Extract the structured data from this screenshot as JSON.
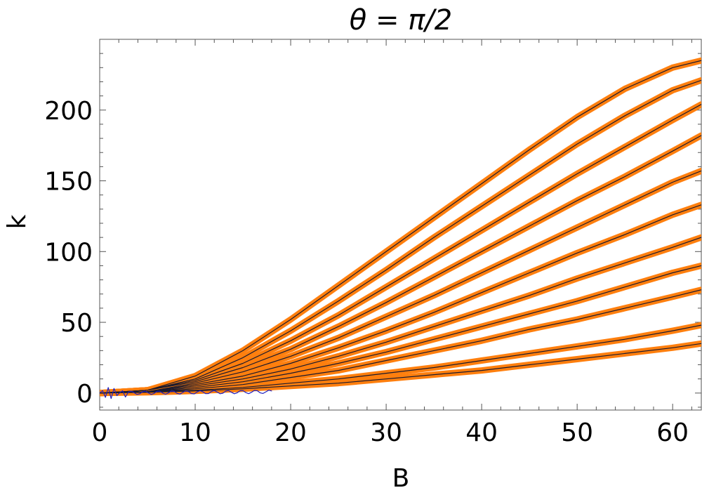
{
  "chart_data": {
    "type": "line",
    "title": "θ = π/2",
    "xlabel": "B",
    "ylabel": "k",
    "xlim": [
      0,
      63
    ],
    "ylim": [
      -12,
      250
    ],
    "xticks": [
      {
        "value": 0,
        "label": "0"
      },
      {
        "value": 10,
        "label": "10"
      },
      {
        "value": 20,
        "label": "20"
      },
      {
        "value": 30,
        "label": "30"
      },
      {
        "value": 40,
        "label": "40"
      },
      {
        "value": 50,
        "label": "50"
      },
      {
        "value": 60,
        "label": "60"
      }
    ],
    "yticks": [
      {
        "value": 0,
        "label": "0"
      },
      {
        "value": 50,
        "label": "50"
      },
      {
        "value": 100,
        "label": "100"
      },
      {
        "value": 150,
        "label": "150"
      },
      {
        "value": 200,
        "label": "200"
      }
    ],
    "grid": false,
    "colors": {
      "fit": "#ff7f0e",
      "numeric": "#1a1a2e",
      "noise": "#1f1fbf"
    },
    "series": [
      {
        "x": [
          0,
          5,
          10,
          15,
          20,
          25,
          30,
          35,
          40,
          45,
          50,
          55,
          60,
          63
        ],
        "values": [
          0,
          2,
          12,
          30,
          52,
          76,
          100,
          124,
          148,
          172,
          195,
          215,
          230,
          235
        ]
      },
      {
        "x": [
          0,
          5,
          10,
          15,
          20,
          25,
          30,
          35,
          40,
          45,
          50,
          55,
          60,
          63
        ],
        "values": [
          0,
          2,
          10,
          25,
          44,
          65,
          87,
          110,
          132,
          154,
          176,
          196,
          214,
          221
        ]
      },
      {
        "x": [
          0,
          5,
          10,
          15,
          20,
          25,
          30,
          35,
          40,
          45,
          50,
          55,
          60,
          63
        ],
        "values": [
          0,
          2,
          9,
          21,
          37,
          55,
          75,
          95,
          115,
          135,
          155,
          174,
          193,
          204
        ]
      },
      {
        "x": [
          0,
          5,
          10,
          15,
          20,
          25,
          30,
          35,
          40,
          45,
          50,
          55,
          60,
          63
        ],
        "values": [
          0,
          2,
          8,
          18,
          31,
          47,
          64,
          82,
          100,
          118,
          136,
          153,
          171,
          182
        ]
      },
      {
        "x": [
          0,
          5,
          10,
          15,
          20,
          25,
          30,
          35,
          40,
          45,
          50,
          55,
          60,
          63
        ],
        "values": [
          0,
          1,
          7,
          15,
          26,
          39,
          54,
          69,
          85,
          101,
          117,
          133,
          149,
          157
        ]
      },
      {
        "x": [
          0,
          5,
          10,
          15,
          20,
          25,
          30,
          35,
          40,
          45,
          50,
          55,
          60,
          63
        ],
        "values": [
          0,
          1,
          6,
          12,
          21,
          32,
          44,
          57,
          71,
          85,
          99,
          112,
          126,
          133
        ]
      },
      {
        "x": [
          0,
          5,
          10,
          15,
          20,
          25,
          30,
          35,
          40,
          45,
          50,
          55,
          60,
          63
        ],
        "values": [
          0,
          1,
          5,
          10,
          17,
          26,
          36,
          47,
          58,
          69,
          81,
          92,
          103,
          110
        ]
      },
      {
        "x": [
          0,
          5,
          10,
          15,
          20,
          25,
          30,
          35,
          40,
          45,
          50,
          55,
          60,
          63
        ],
        "values": [
          0,
          1,
          4,
          8,
          14,
          21,
          29,
          38,
          47,
          56,
          65,
          75,
          85,
          90
        ]
      },
      {
        "x": [
          0,
          5,
          10,
          15,
          20,
          25,
          30,
          35,
          40,
          45,
          50,
          55,
          60,
          63
        ],
        "values": [
          0,
          1,
          3,
          6,
          11,
          16,
          23,
          30,
          37,
          45,
          52,
          60,
          68,
          73
        ]
      },
      {
        "x": [
          0,
          5,
          10,
          15,
          20,
          25,
          30,
          35,
          40,
          45,
          50,
          55,
          60,
          63
        ],
        "values": [
          0,
          1,
          2,
          4,
          7,
          10,
          14,
          18,
          23,
          28,
          33,
          38,
          44,
          48
        ]
      },
      {
        "x": [
          0,
          5,
          10,
          15,
          20,
          25,
          30,
          35,
          40,
          45,
          50,
          55,
          60,
          63
        ],
        "values": [
          0,
          0.5,
          1.5,
          3,
          5,
          7,
          10,
          13,
          16,
          20,
          24,
          28,
          32,
          35
        ]
      }
    ]
  }
}
